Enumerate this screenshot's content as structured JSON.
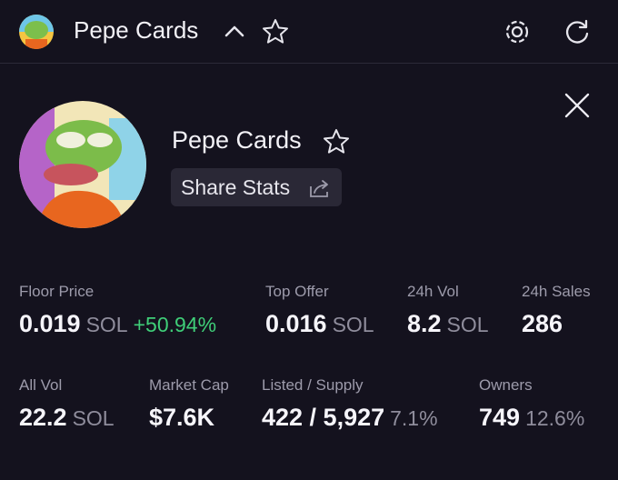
{
  "header": {
    "title": "Pepe Cards"
  },
  "collection": {
    "name": "Pepe Cards",
    "share_button": "Share Stats"
  },
  "stats": [
    {
      "label": "Floor Price",
      "value": "0.019",
      "unit": "SOL",
      "change": "+50.94%"
    },
    {
      "label": "Top Offer",
      "value": "0.016",
      "unit": "SOL"
    },
    {
      "label": "24h Vol",
      "value": "8.2",
      "unit": "SOL"
    },
    {
      "label": "24h Sales",
      "value": "286"
    },
    {
      "label": "All Vol",
      "value": "22.2",
      "unit": "SOL"
    },
    {
      "label": "Market Cap",
      "value": "$7.6K"
    },
    {
      "label": "Listed / Supply",
      "value": "422 / 5,927",
      "change": "7.1%"
    },
    {
      "label": "Owners",
      "value": "749",
      "change": "12.6%"
    }
  ]
}
